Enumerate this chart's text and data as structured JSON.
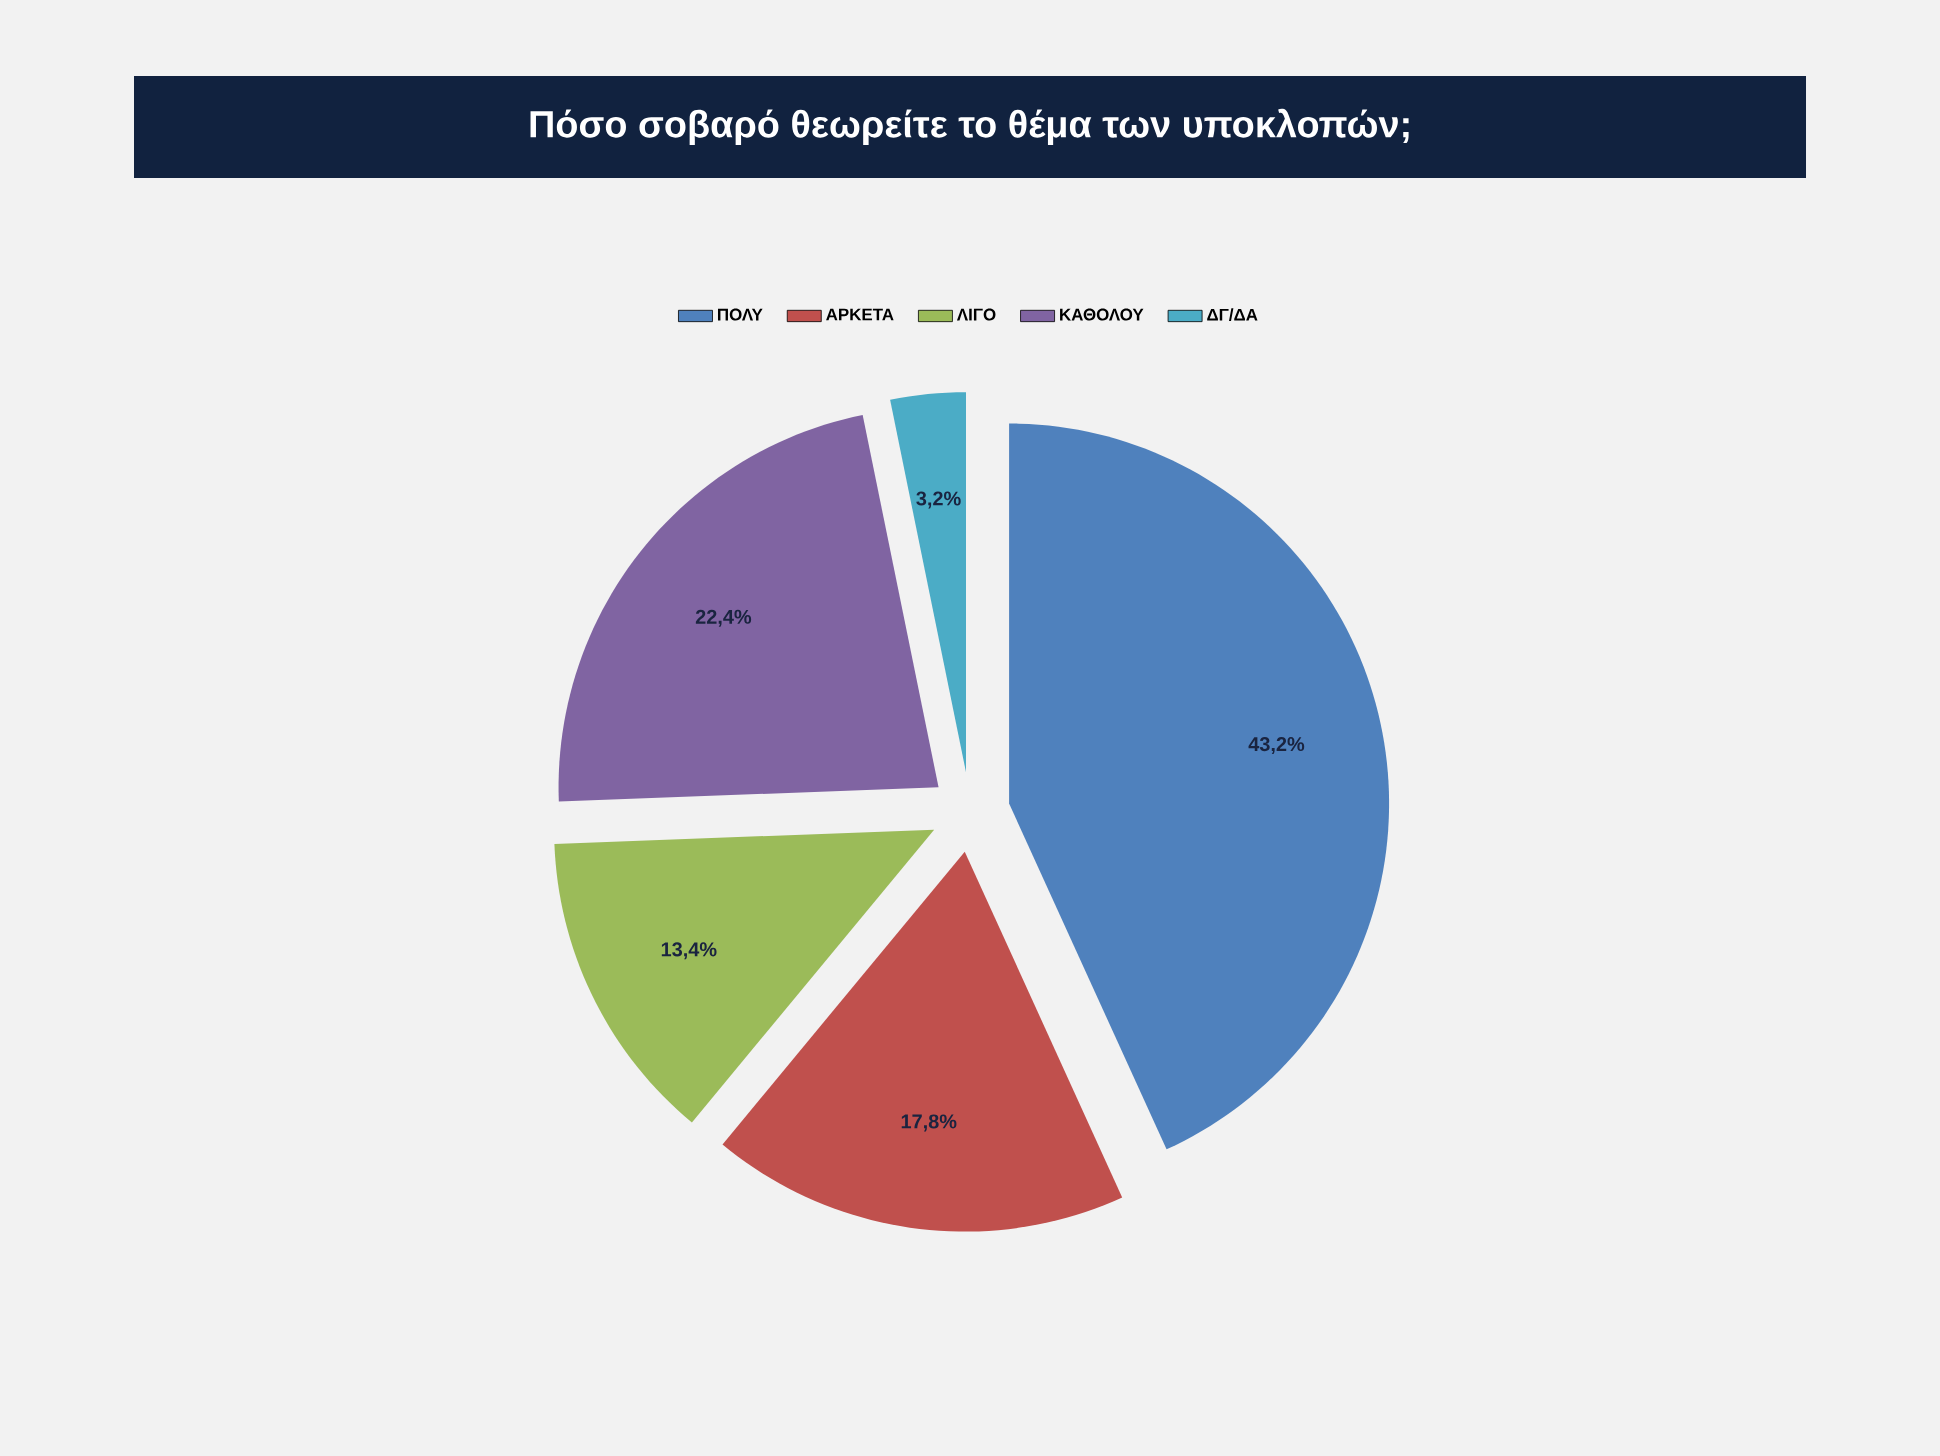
{
  "chart_data": {
    "type": "pie",
    "title": "Πόσο σοβαρό θεωρείτε το θέμα των υποκλοπών;",
    "categories": [
      "ΠΟΛΥ",
      "ΑΡΚΕΤΑ",
      "ΛΙΓΟ",
      "ΚΑΘΟΛΟΥ",
      "ΔΓ/ΔΑ"
    ],
    "values": [
      43.2,
      17.8,
      13.4,
      22.4,
      3.2
    ],
    "colors": [
      "#4f81bd",
      "#c0504d",
      "#9bbb59",
      "#8064a2",
      "#4bacc6"
    ],
    "value_labels": [
      "43,2%",
      "17,8%",
      "13,4%",
      "22,4%",
      "3,2%"
    ],
    "legend": "top"
  }
}
